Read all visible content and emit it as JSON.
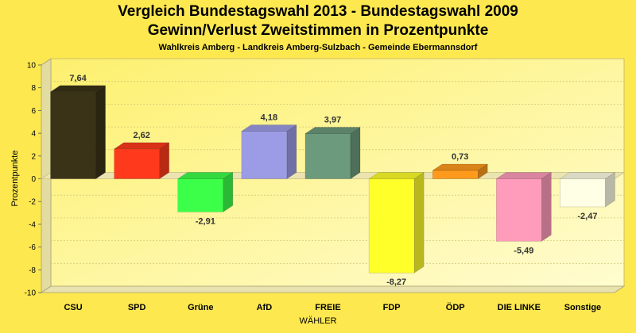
{
  "chart_data": {
    "type": "bar",
    "title": "Vergleich Bundestagswahl 2013 - Bundestagswahl 2009",
    "subtitle": "Gewinn/Verlust Zweitstimmen in Prozentpunkte",
    "subsubtitle": "Wahlkreis Amberg - Landkreis Amberg-Sulzbach - Gemeinde Ebermannsdorf",
    "xlabel": "WÄHLER",
    "ylabel": "Prozentpunkte",
    "ylim": [
      -10,
      10
    ],
    "yticks": [
      10,
      8,
      6,
      4,
      2,
      0,
      -2,
      -4,
      -6,
      -8,
      -10
    ],
    "categories": [
      "CSU",
      "SPD",
      "Grüne",
      "AfD",
      "FREIE WÄHLER",
      "FDP",
      "ÖDP",
      "DIE LINKE",
      "Sonstige"
    ],
    "category_lines": [
      [
        "CSU"
      ],
      [
        "SPD"
      ],
      [
        "Grüne"
      ],
      [
        "AfD"
      ],
      [
        "FREIE"
      ],
      [
        "FDP"
      ],
      [
        "ÖDP"
      ],
      [
        "DIE LINKE"
      ],
      [
        "Sonstige"
      ]
    ],
    "values": [
      7.64,
      2.62,
      -2.91,
      4.18,
      3.97,
      -8.27,
      0.73,
      -5.49,
      -2.47
    ],
    "value_labels": [
      "7,64",
      "2,62",
      "-2,91",
      "4,18",
      "3,97",
      "-8,27",
      "0,73",
      "-5,49",
      "-2,47"
    ],
    "colors": [
      "#3a3317",
      "#ff3a1c",
      "#3cff4a",
      "#9c9ce6",
      "#6c9a7c",
      "#ffff2a",
      "#ff9a1c",
      "#ff9cbc",
      "#ffffe6"
    ]
  }
}
